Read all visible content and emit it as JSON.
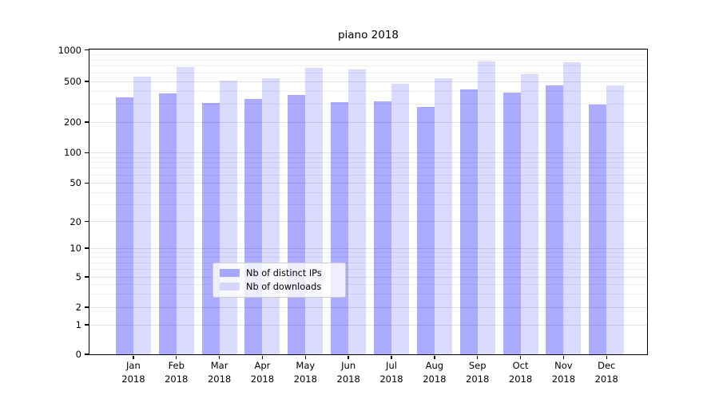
{
  "title": "piano 2018",
  "chart_data": {
    "type": "bar",
    "title": "piano 2018",
    "categories": [
      "Jan 2018",
      "Feb 2018",
      "Mar 2018",
      "Apr 2018",
      "May 2018",
      "Jun 2018",
      "Jul 2018",
      "Aug 2018",
      "Sep 2018",
      "Oct 2018",
      "Nov 2018",
      "Dec 2018"
    ],
    "series": [
      {
        "name": "Nb of distinct IPs",
        "color": "rgba(0,0,255,0.33)",
        "values": [
          347,
          384,
          310,
          337,
          370,
          311,
          321,
          280,
          420,
          389,
          454,
          299
        ]
      },
      {
        "name": "Nb of downloads",
        "color": "rgba(0,0,255,0.14)",
        "values": [
          558,
          688,
          512,
          535,
          670,
          650,
          474,
          540,
          775,
          590,
          762,
          459
        ]
      }
    ],
    "xlabel": "",
    "ylabel": "",
    "y_axis": {
      "scale": "symlog",
      "ticks": [
        0,
        1,
        2,
        5,
        10,
        20,
        50,
        100,
        200,
        500,
        1000
      ],
      "minor_gridlines": [
        3,
        4,
        6,
        7,
        8,
        9,
        30,
        40,
        60,
        70,
        80,
        90,
        300,
        400,
        600,
        700,
        800,
        900
      ],
      "ylim": [
        0,
        1000
      ],
      "grid": true
    },
    "legend": {
      "position": "inside-bottom-center",
      "entries": [
        "Nb of distinct IPs",
        "Nb of downloads"
      ]
    }
  }
}
